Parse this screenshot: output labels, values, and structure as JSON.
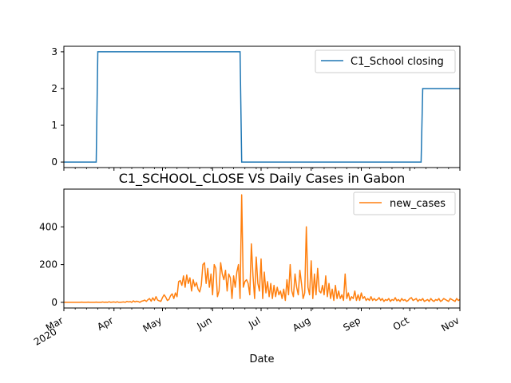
{
  "chart_data": [
    {
      "type": "line",
      "title": "",
      "xlabel": "",
      "ylabel": "",
      "ylim": [
        -0.15,
        3.15
      ],
      "yticks": [
        0,
        1,
        2,
        3
      ],
      "grid": false,
      "legend": "upper-right",
      "series": [
        {
          "name": "C1_School closing",
          "color": "#1f77b4",
          "x": [
            "2020-03-01",
            "2020-03-21",
            "2020-03-22",
            "2020-06-18",
            "2020-06-19",
            "2020-10-08",
            "2020-10-09",
            "2020-11-01"
          ],
          "y": [
            0,
            0,
            3,
            3,
            0,
            0,
            2,
            2
          ]
        }
      ]
    },
    {
      "type": "line",
      "title": "C1_SCHOOL_CLOSE VS Daily Cases in Gabon",
      "xlabel": "Date",
      "ylabel": "",
      "ylim": [
        -30,
        600
      ],
      "yticks": [
        0,
        200,
        400
      ],
      "xticks": [
        {
          "date": "2020-03-01",
          "label": "Mar",
          "sublabel": "2020"
        },
        {
          "date": "2020-04-01",
          "label": "Apr",
          "sublabel": ""
        },
        {
          "date": "2020-05-01",
          "label": "May",
          "sublabel": ""
        },
        {
          "date": "2020-06-01",
          "label": "Jun",
          "sublabel": ""
        },
        {
          "date": "2020-07-01",
          "label": "Jul",
          "sublabel": ""
        },
        {
          "date": "2020-08-01",
          "label": "Aug",
          "sublabel": ""
        },
        {
          "date": "2020-09-01",
          "label": "Sep",
          "sublabel": ""
        },
        {
          "date": "2020-10-01",
          "label": "Oct",
          "sublabel": ""
        },
        {
          "date": "2020-11-01",
          "label": "Nov",
          "sublabel": ""
        }
      ],
      "grid": false,
      "legend": "upper-right",
      "series": [
        {
          "name": "new_cases",
          "color": "#ff7f0e",
          "start": "2020-03-01",
          "values": [
            0,
            0,
            0,
            0,
            0,
            0,
            0,
            0,
            0,
            0,
            0,
            1,
            0,
            0,
            0,
            1,
            0,
            0,
            0,
            0,
            1,
            0,
            0,
            0,
            2,
            0,
            1,
            0,
            3,
            0,
            1,
            2,
            0,
            3,
            0,
            0,
            1,
            2,
            0,
            5,
            2,
            4,
            0,
            8,
            2,
            6,
            4,
            0,
            6,
            8,
            12,
            5,
            14,
            20,
            6,
            24,
            10,
            30,
            12,
            8,
            5,
            25,
            40,
            28,
            10,
            15,
            35,
            45,
            20,
            50,
            30,
            110,
            115,
            90,
            140,
            80,
            145,
            100,
            130,
            60,
            120,
            85,
            105,
            70,
            55,
            90,
            200,
            210,
            100,
            180,
            80,
            150,
            40,
            200,
            180,
            30,
            60,
            210,
            150,
            120,
            170,
            60,
            150,
            130,
            20,
            140,
            80,
            160,
            200,
            20,
            570,
            80,
            110,
            120,
            100,
            40,
            310,
            140,
            20,
            240,
            100,
            60,
            230,
            20,
            160,
            50,
            110,
            30,
            100,
            20,
            90,
            30,
            80,
            40,
            60,
            20,
            70,
            10,
            120,
            40,
            200,
            60,
            30,
            150,
            80,
            40,
            170,
            100,
            20,
            50,
            400,
            80,
            40,
            220,
            20,
            150,
            40,
            180,
            60,
            50,
            90,
            40,
            140,
            30,
            100,
            20,
            70,
            10,
            90,
            20,
            60,
            20,
            40,
            10,
            150,
            20,
            50,
            10,
            30,
            20,
            60,
            10,
            40,
            10,
            50,
            20,
            30,
            10,
            20,
            10,
            30,
            10,
            20,
            10,
            15,
            25,
            10,
            20,
            5,
            15,
            10,
            20,
            5,
            15,
            10,
            25,
            8,
            15,
            5,
            20,
            10,
            15,
            5,
            10,
            20,
            25,
            10,
            15,
            20,
            5,
            15,
            10,
            20,
            5,
            10,
            15,
            5,
            20,
            10,
            5,
            15,
            10,
            20,
            5,
            10,
            20,
            15,
            10,
            5,
            20,
            15,
            10,
            5,
            20,
            10,
            15,
            5
          ]
        }
      ]
    }
  ]
}
